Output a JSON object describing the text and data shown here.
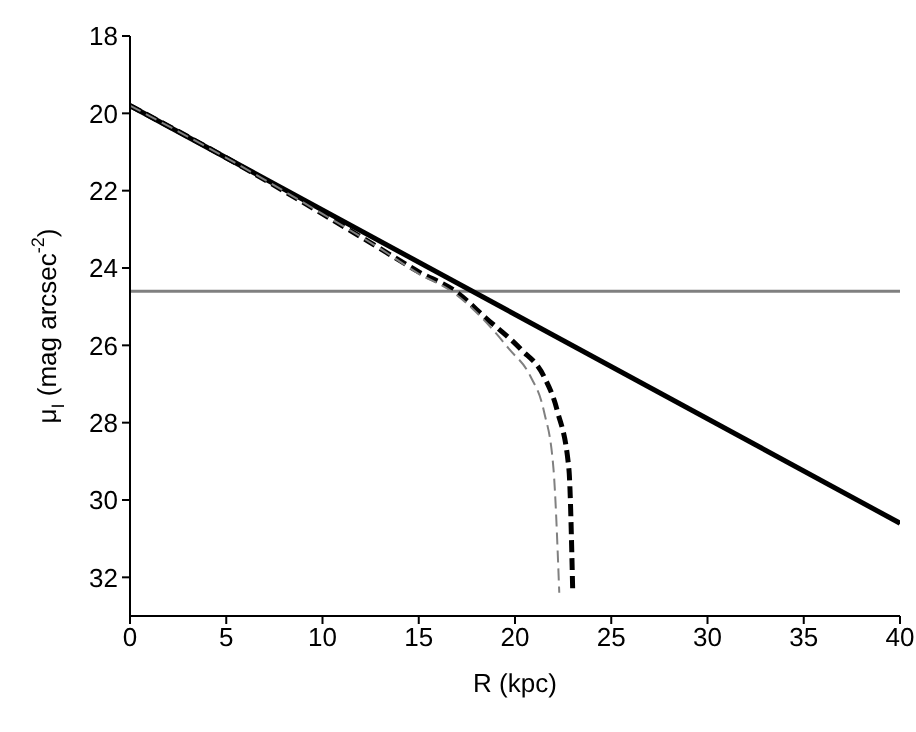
{
  "chart_data": {
    "type": "line",
    "xlabel": "R (kpc)",
    "ylabel": "μ$_{I}$ (mag arcsec$^{-2}$)",
    "xlim": [
      0,
      40
    ],
    "xticks": [
      0,
      5,
      10,
      15,
      20,
      25,
      30,
      35,
      40
    ],
    "ylim": [
      33,
      18
    ],
    "yticks": [
      18,
      20,
      22,
      24,
      26,
      28,
      30,
      32
    ],
    "grid": false,
    "legend": false,
    "marker": "none",
    "ref_lines": [
      {
        "axis": "y",
        "value": 24.6,
        "color": "#808080",
        "line_style": "solid"
      }
    ],
    "series": [
      {
        "color": "#000000",
        "line_style": "solid",
        "x": [
          0,
          40
        ],
        "values": [
          19.8,
          30.6
        ]
      },
      {
        "color": "#000000",
        "line_style": "dashed",
        "x": [
          0,
          5,
          10,
          13,
          15,
          16.9,
          18.5,
          20.3,
          21.5,
          22.2,
          22.8,
          23.0
        ],
        "values": [
          19.8,
          21.15,
          22.6,
          23.5,
          24.1,
          24.6,
          25.3,
          26.1,
          26.8,
          27.7,
          29.2,
          32.4
        ]
      },
      {
        "color": "#808080",
        "line_style": "dashed",
        "x": [
          0,
          5,
          10,
          13,
          15,
          16.7,
          18.3,
          19.7,
          20.8,
          21.5,
          22.0,
          22.3
        ],
        "values": [
          19.8,
          21.15,
          22.6,
          23.5,
          24.15,
          24.6,
          25.3,
          26.1,
          26.8,
          27.7,
          29.2,
          32.4
        ]
      }
    ]
  }
}
